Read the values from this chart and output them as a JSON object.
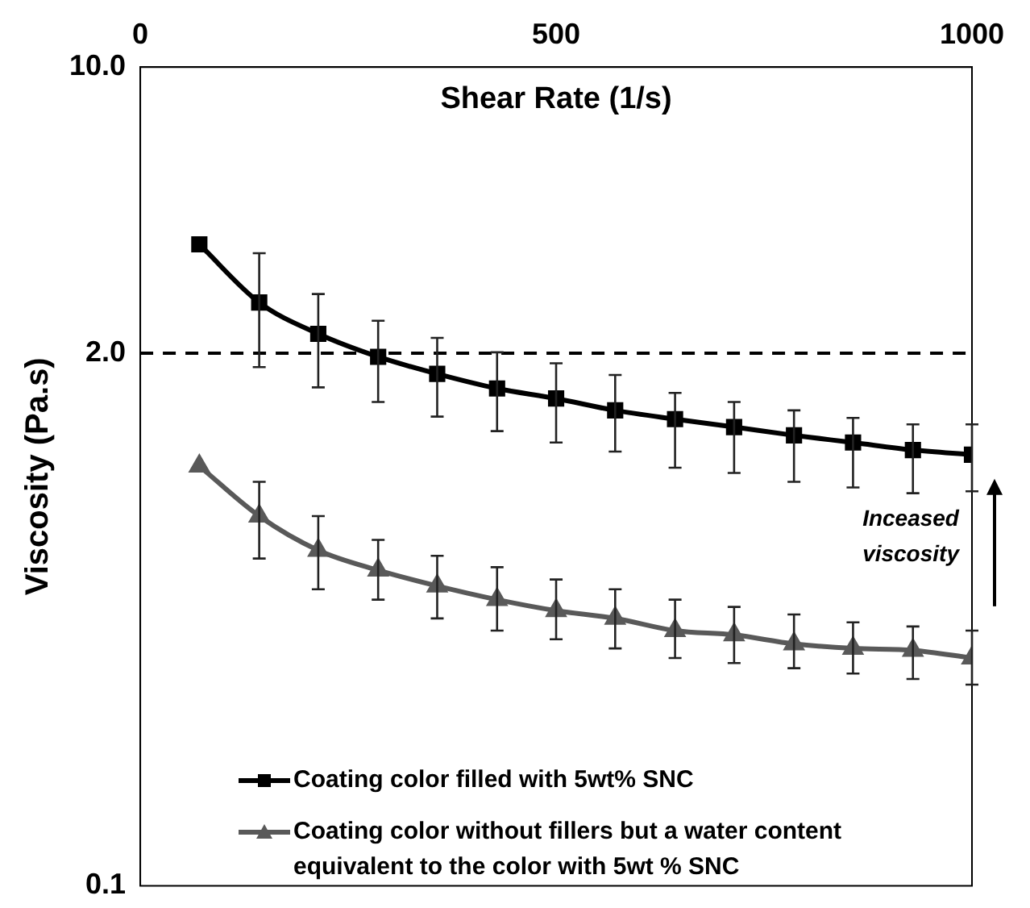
{
  "chart_data": {
    "type": "line",
    "xlabel": "Shear Rate (1/s)",
    "ylabel": "Viscosity (Pa.s)",
    "x": [
      71,
      143,
      214,
      286,
      357,
      429,
      500,
      571,
      643,
      714,
      786,
      857,
      929,
      1000
    ],
    "xlim": [
      0,
      1000
    ],
    "xticks": [
      0,
      500,
      1000
    ],
    "ylim": [
      0.1,
      10
    ],
    "yticks": [
      0.1,
      {
        "value": 2,
        "label": "2.0"
      },
      {
        "value": 10,
        "label": "10.0"
      }
    ],
    "log": "y",
    "grid": false,
    "legend": "bottom left",
    "line_style": "solid",
    "series": [
      {
        "name": "Coating color filled with 5wt% SNC",
        "color": "#000000",
        "marker": "square",
        "values": [
          3.69,
          2.66,
          2.23,
          1.96,
          1.78,
          1.64,
          1.55,
          1.45,
          1.38,
          1.32,
          1.26,
          1.21,
          1.16,
          1.13
        ],
        "errors": [
          null,
          [
            1.85,
            3.51
          ],
          [
            1.65,
            2.79
          ],
          [
            1.52,
            2.4
          ],
          [
            1.4,
            2.18
          ],
          [
            1.29,
            2.01
          ],
          [
            1.21,
            1.89
          ],
          [
            1.15,
            1.77
          ],
          [
            1.05,
            1.6
          ],
          [
            1.02,
            1.52
          ],
          [
            0.97,
            1.45
          ],
          [
            0.94,
            1.39
          ],
          [
            0.91,
            1.34
          ],
          [
            0.92,
            1.34
          ]
        ]
      },
      {
        "name": "Coating color without fillers but a water content equivalent to the color with 5wt % SNC",
        "color": "#595959",
        "marker": "triangle",
        "values": [
          1.06,
          0.8,
          0.66,
          0.59,
          0.54,
          0.5,
          0.47,
          0.45,
          0.42,
          0.41,
          0.39,
          0.38,
          0.376,
          0.36
        ],
        "errors": [
          null,
          [
            0.63,
            0.97
          ],
          [
            0.53,
            0.8
          ],
          [
            0.5,
            0.7
          ],
          [
            0.45,
            0.64
          ],
          [
            0.42,
            0.6
          ],
          [
            0.4,
            0.56
          ],
          [
            0.38,
            0.53
          ],
          [
            0.36,
            0.5
          ],
          [
            0.35,
            0.48
          ],
          [
            0.34,
            0.46
          ],
          [
            0.33,
            0.44
          ],
          [
            0.32,
            0.43
          ],
          [
            0.31,
            0.42
          ]
        ]
      }
    ],
    "ref_lines": [
      {
        "axis": "y",
        "value": 2,
        "line_style": "dashed"
      }
    ],
    "annotations": [
      "Inceased viscosity"
    ]
  }
}
